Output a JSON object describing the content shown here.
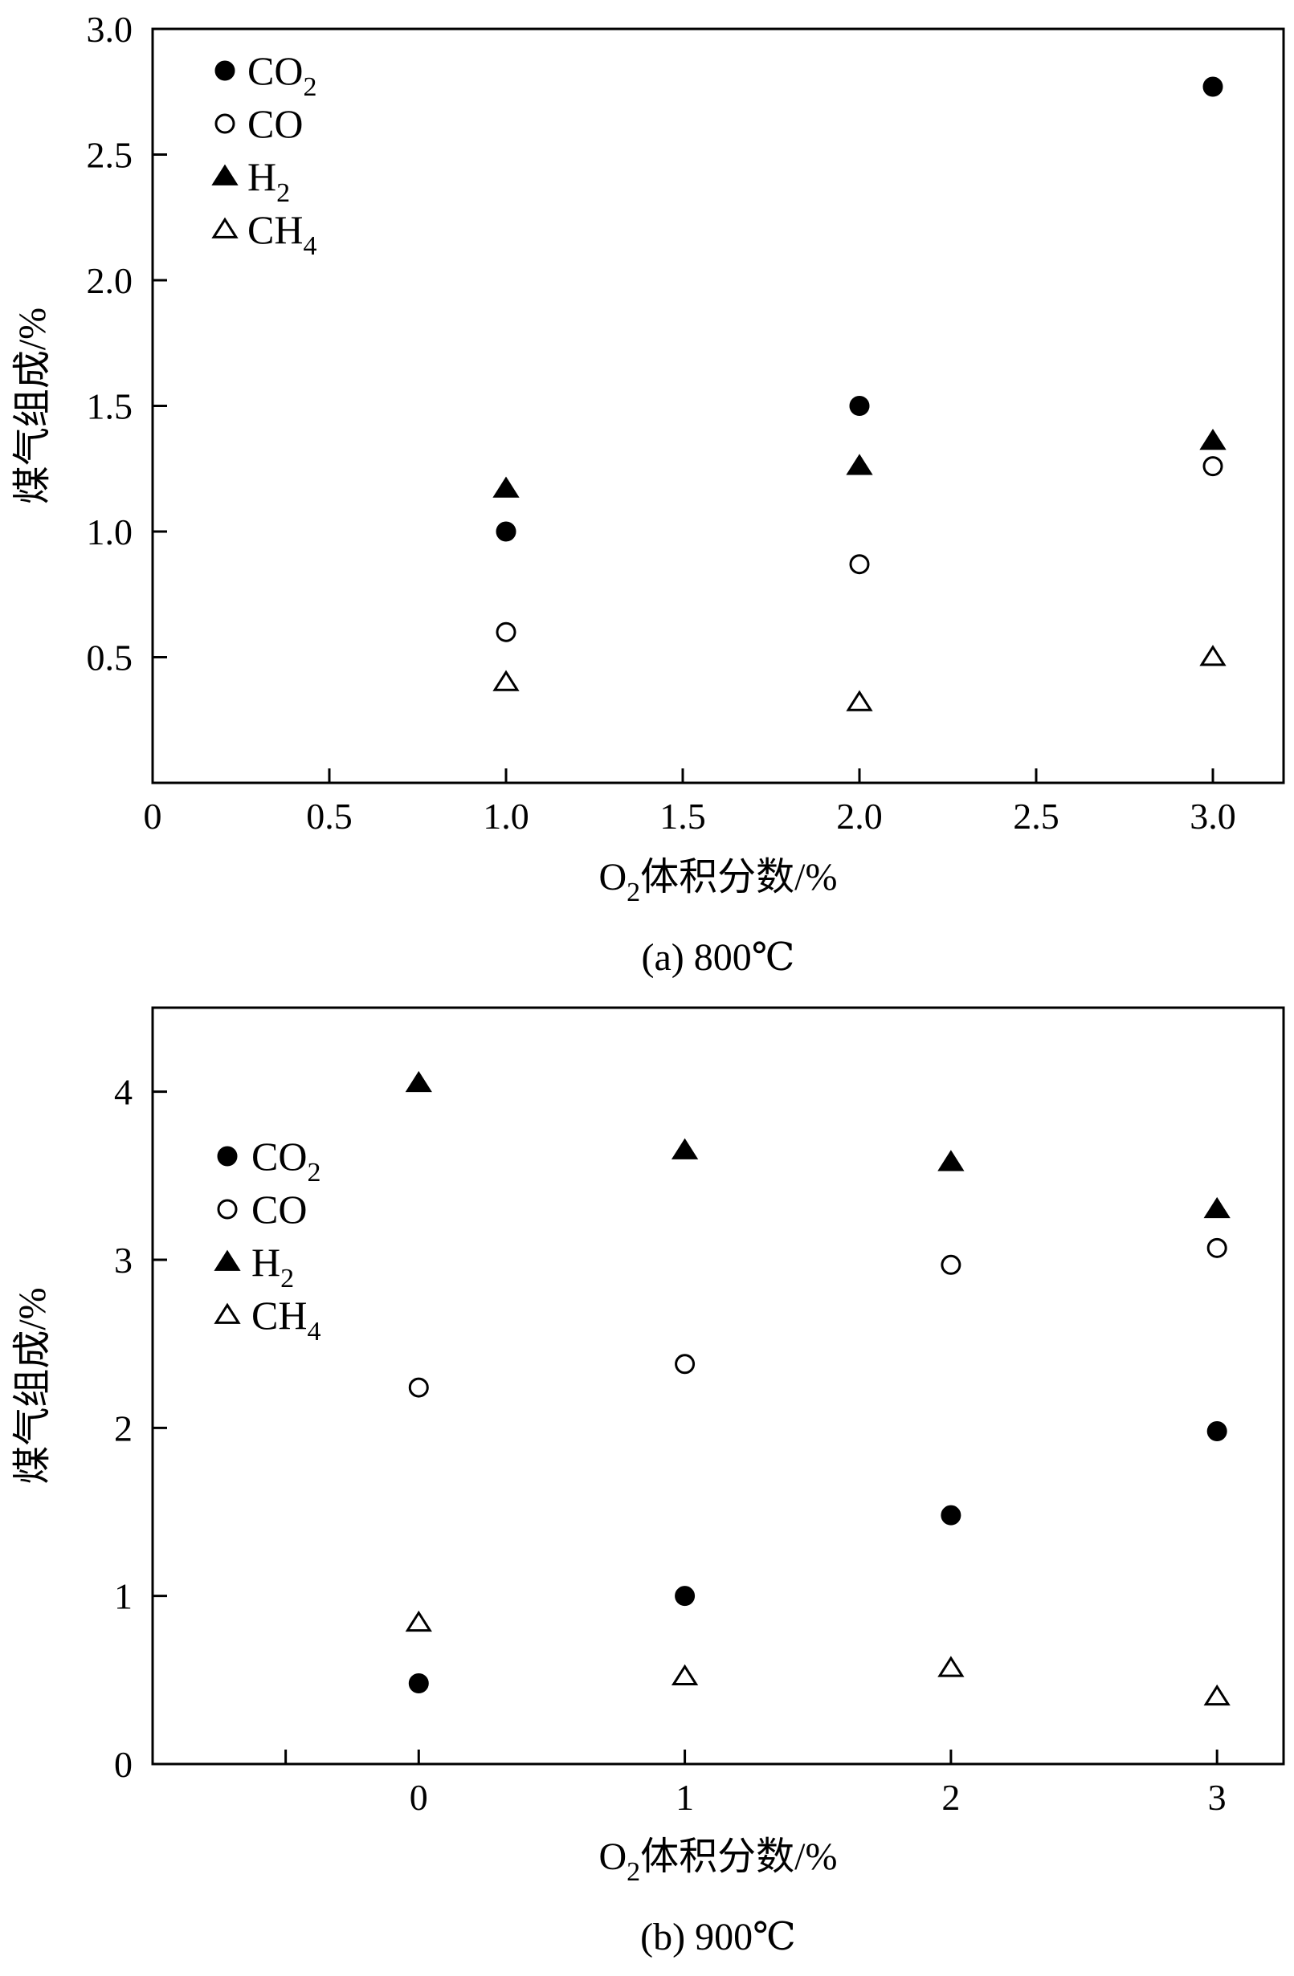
{
  "chart_data": [
    {
      "id": "a",
      "type": "scatter",
      "caption": "(a) 800℃",
      "xlabel": {
        "base": "O",
        "sub": "2",
        "rest": "体积分数/%"
      },
      "ylabel": "煤气组成/%",
      "xlim": [
        0,
        3.2
      ],
      "ylim": [
        0,
        3.0
      ],
      "xticks": [
        0,
        0.5,
        1.0,
        1.5,
        2.0,
        2.5,
        3.0
      ],
      "xtick_labels": [
        "0",
        "0.5",
        "1.0",
        "1.5",
        "2.0",
        "2.5",
        "3.0"
      ],
      "yticks": [
        0.5,
        1.0,
        1.5,
        2.0,
        2.5,
        3.0
      ],
      "ytick_labels": [
        "0.5",
        "1.0",
        "1.5",
        "2.0",
        "2.5",
        "3.0"
      ],
      "legend_position": "top-left",
      "series": [
        {
          "key": "co2",
          "name": "CO",
          "name_sub": "2",
          "marker": "filled-circle",
          "x": [
            1.0,
            2.0,
            3.0
          ],
          "y": [
            1.0,
            1.5,
            2.77
          ]
        },
        {
          "key": "co",
          "name": "CO",
          "name_sub": "",
          "marker": "open-circle",
          "x": [
            1.0,
            2.0,
            3.0
          ],
          "y": [
            0.6,
            0.87,
            1.26
          ]
        },
        {
          "key": "h2",
          "name": "H",
          "name_sub": "2",
          "marker": "filled-triangle",
          "x": [
            1.0,
            2.0,
            3.0
          ],
          "y": [
            1.17,
            1.26,
            1.36
          ]
        },
        {
          "key": "ch4",
          "name": "CH",
          "name_sub": "4",
          "marker": "open-triangle",
          "x": [
            1.0,
            2.0,
            3.0
          ],
          "y": [
            0.4,
            0.32,
            0.5
          ]
        }
      ]
    },
    {
      "id": "b",
      "type": "scatter",
      "caption": "(b) 900℃",
      "xlabel": {
        "base": "O",
        "sub": "2",
        "rest": "体积分数/%"
      },
      "ylabel": "煤气组成/%",
      "xlim": [
        -1,
        3.25
      ],
      "ylim": [
        0,
        4.5
      ],
      "xticks": [
        -0.5,
        0,
        1,
        2,
        3
      ],
      "xtick_labels": [
        "",
        "0",
        "1",
        "2",
        "3"
      ],
      "yticks": [
        0,
        1,
        2,
        3,
        4
      ],
      "ytick_labels": [
        "0",
        "1",
        "2",
        "3",
        "4"
      ],
      "legend_position": "upper-left",
      "series": [
        {
          "key": "co2",
          "name": "CO",
          "name_sub": "2",
          "marker": "filled-circle",
          "x": [
            0,
            1,
            2,
            3
          ],
          "y": [
            0.48,
            1.0,
            1.48,
            1.98
          ]
        },
        {
          "key": "co",
          "name": "CO",
          "name_sub": "",
          "marker": "open-circle",
          "x": [
            0,
            1,
            2,
            3
          ],
          "y": [
            2.24,
            2.38,
            2.97,
            3.07
          ]
        },
        {
          "key": "h2",
          "name": "H",
          "name_sub": "2",
          "marker": "filled-triangle",
          "x": [
            0,
            1,
            2,
            3
          ],
          "y": [
            4.05,
            3.65,
            3.58,
            3.3
          ]
        },
        {
          "key": "ch4",
          "name": "CH",
          "name_sub": "4",
          "marker": "open-triangle",
          "x": [
            0,
            1,
            2,
            3
          ],
          "y": [
            0.84,
            0.52,
            0.57,
            0.4
          ]
        }
      ]
    }
  ]
}
